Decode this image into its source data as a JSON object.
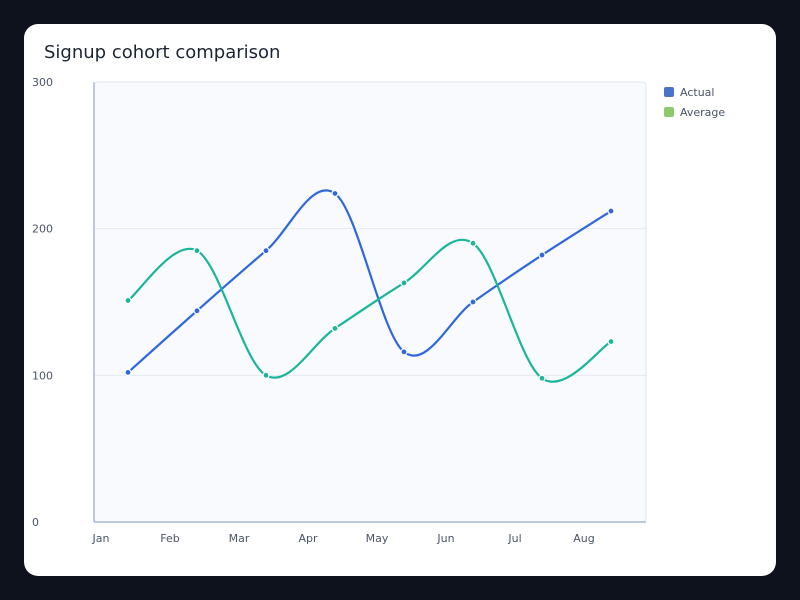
{
  "chart_data": {
    "type": "line",
    "title": "Signup cohort comparison",
    "categories": [
      "Jan",
      "Feb",
      "Mar",
      "Apr",
      "May",
      "Jun",
      "Jul",
      "Aug"
    ],
    "ylim": [
      0,
      300
    ],
    "yticks": [
      0,
      100,
      200,
      300
    ],
    "grid": true,
    "legend_position": "top-right",
    "smooth": true,
    "series": [
      {
        "name": "Actual",
        "color": "#2f67dd",
        "legend_color": "#4a72c9",
        "values": [
          102,
          144,
          185,
          224,
          116,
          150,
          182,
          212
        ]
      },
      {
        "name": "Average",
        "color": "#1db59a",
        "legend_color": "#8dc96f",
        "values": [
          151,
          185,
          100,
          132,
          163,
          190,
          98,
          123
        ]
      }
    ]
  }
}
